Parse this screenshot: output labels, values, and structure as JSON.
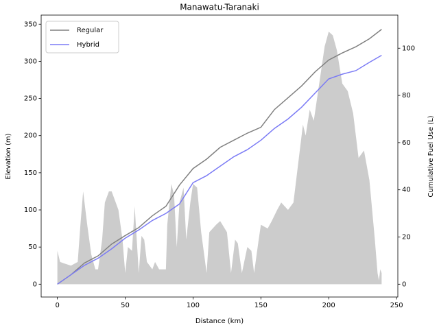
{
  "chart_data": {
    "type": "area-line",
    "title": "Manawatu-Taranaki",
    "xlabel": "Distance (km)",
    "ylabel": "Elevation (m)",
    "y2label": "Cumulative Fuel Use (L)",
    "xlim": [
      -11.95,
      250.95
    ],
    "xticks": [
      0,
      50,
      100,
      150,
      200,
      250
    ],
    "ylim": [
      -17.25,
      362.25
    ],
    "yticks": [
      0,
      50,
      100,
      150,
      200,
      250,
      300,
      350
    ],
    "y2lim": [
      -5.43,
      114.03
    ],
    "y2ticks": [
      0,
      20,
      40,
      60,
      80,
      100
    ],
    "legend": "upper left",
    "elevation": {
      "color": "#cccccc",
      "x": [
        0,
        2,
        5,
        10,
        15,
        17,
        19,
        22,
        25,
        28,
        30,
        33,
        35,
        38,
        40,
        42,
        45,
        48,
        50,
        52,
        55,
        57,
        60,
        62,
        64,
        66,
        70,
        72,
        75,
        80,
        81,
        84,
        86,
        88,
        90,
        93,
        95,
        98,
        100,
        103,
        106,
        110,
        112,
        117,
        120,
        125,
        128,
        131,
        133,
        136,
        140,
        143,
        145,
        148,
        150,
        155,
        158,
        162,
        165,
        170,
        174,
        178,
        181,
        183,
        186,
        189,
        193,
        197,
        200,
        203,
        206,
        210,
        214,
        218,
        222,
        226,
        230,
        232,
        234,
        236,
        237,
        238,
        239
      ],
      "values": [
        45,
        30,
        28,
        25,
        30,
        80,
        125,
        80,
        40,
        20,
        20,
        60,
        110,
        125,
        125,
        115,
        100,
        60,
        15,
        50,
        45,
        105,
        15,
        65,
        60,
        30,
        20,
        30,
        20,
        20,
        80,
        135,
        120,
        50,
        110,
        130,
        60,
        110,
        135,
        130,
        70,
        15,
        70,
        80,
        85,
        70,
        15,
        60,
        55,
        15,
        50,
        45,
        15,
        55,
        80,
        75,
        85,
        100,
        110,
        100,
        110,
        170,
        215,
        200,
        235,
        220,
        270,
        320,
        340,
        335,
        315,
        270,
        260,
        230,
        170,
        180,
        140,
        100,
        60,
        15,
        5,
        20,
        15
      ]
    },
    "series": [
      {
        "name": "Regular",
        "color": "#808080",
        "axis": "y2",
        "x": [
          0,
          10,
          20,
          30,
          40,
          50,
          60,
          70,
          80,
          90,
          100,
          110,
          120,
          130,
          140,
          150,
          160,
          170,
          180,
          190,
          200,
          210,
          220,
          230,
          239
        ],
        "values": [
          0,
          4,
          9,
          12,
          17,
          20.6,
          24,
          29,
          33,
          42,
          49,
          53,
          58,
          61,
          64,
          66.5,
          74,
          79,
          84,
          90,
          95,
          98,
          100.6,
          104,
          108
        ]
      },
      {
        "name": "Hybrid",
        "color": "#7b7bf5",
        "axis": "y2",
        "x": [
          0,
          10,
          20,
          30,
          40,
          50,
          60,
          70,
          80,
          90,
          100,
          110,
          120,
          130,
          140,
          150,
          160,
          170,
          180,
          190,
          200,
          210,
          220,
          230,
          239
        ],
        "values": [
          0,
          4,
          8,
          11,
          15,
          19.5,
          23,
          27,
          30,
          34,
          43,
          46,
          50,
          54,
          57,
          61,
          66,
          70,
          75,
          81,
          87,
          89,
          90.5,
          94,
          97
        ]
      }
    ]
  }
}
